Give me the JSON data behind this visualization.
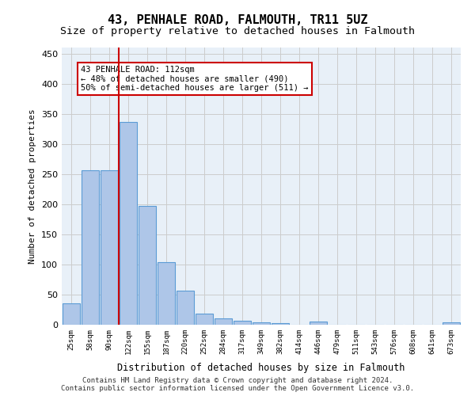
{
  "title1": "43, PENHALE ROAD, FALMOUTH, TR11 5UZ",
  "title2": "Size of property relative to detached houses in Falmouth",
  "xlabel": "Distribution of detached houses by size in Falmouth",
  "ylabel": "Number of detached properties",
  "bar_labels": [
    "25sqm",
    "58sqm",
    "90sqm",
    "122sqm",
    "155sqm",
    "187sqm",
    "220sqm",
    "252sqm",
    "284sqm",
    "317sqm",
    "349sqm",
    "382sqm",
    "414sqm",
    "446sqm",
    "479sqm",
    "511sqm",
    "543sqm",
    "576sqm",
    "608sqm",
    "641sqm",
    "673sqm"
  ],
  "bar_values": [
    35,
    256,
    256,
    337,
    197,
    104,
    57,
    19,
    10,
    6,
    4,
    2,
    0,
    5,
    0,
    0,
    0,
    0,
    0,
    0,
    4
  ],
  "bar_color": "#aec6e8",
  "bar_edge_color": "#5b9bd5",
  "vline_x": 3,
  "vline_color": "#cc0000",
  "annotation_text": "43 PENHALE ROAD: 112sqm\n← 48% of detached houses are smaller (490)\n50% of semi-detached houses are larger (511) →",
  "annotation_box_color": "#ffffff",
  "annotation_box_edge": "#cc0000",
  "ylim": [
    0,
    460
  ],
  "yticks": [
    0,
    50,
    100,
    150,
    200,
    250,
    300,
    350,
    400,
    450
  ],
  "grid_color": "#cccccc",
  "background_color": "#e8f0f8",
  "footer": "Contains HM Land Registry data © Crown copyright and database right 2024.\nContains public sector information licensed under the Open Government Licence v3.0."
}
